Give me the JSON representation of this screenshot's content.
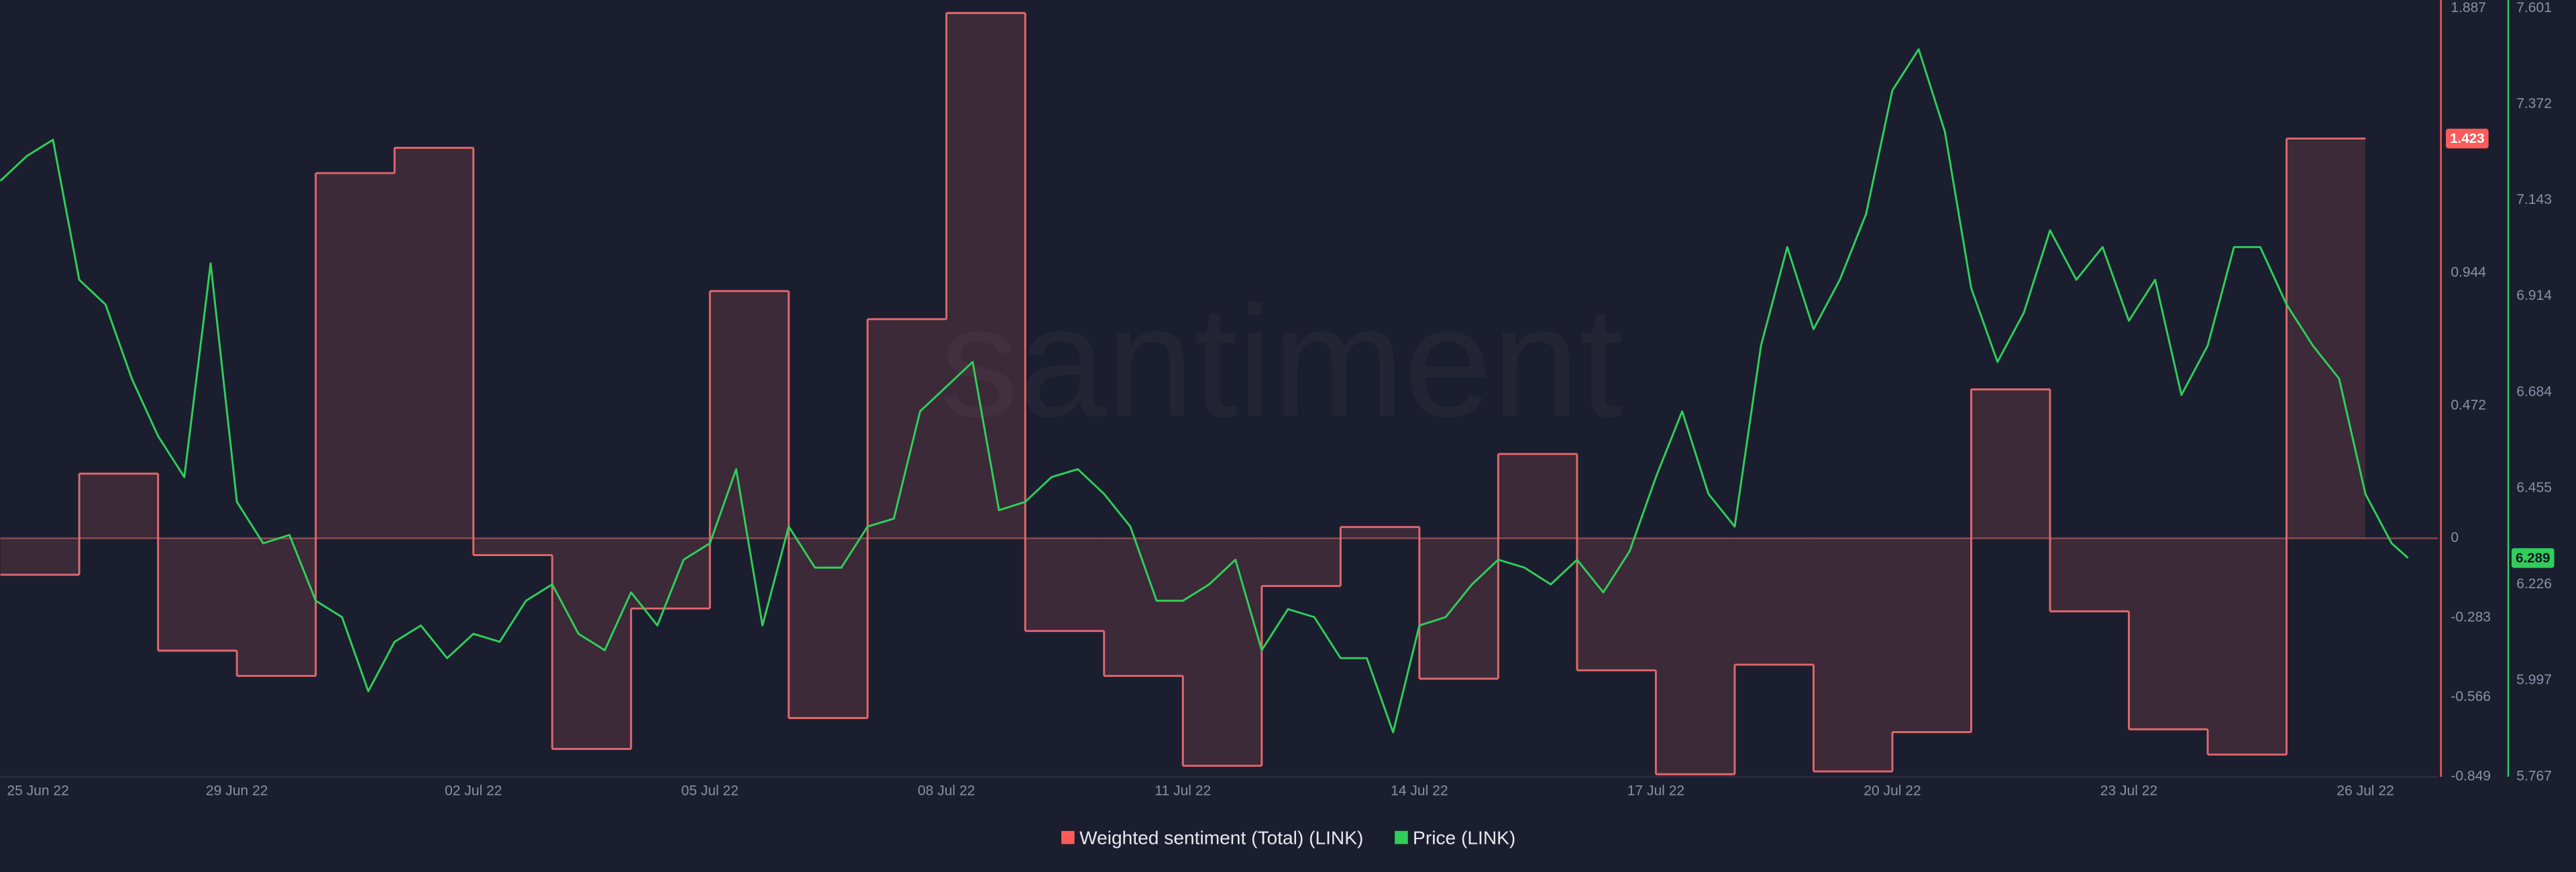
{
  "chart_data": {
    "type": "line",
    "watermark": "santiment",
    "xlim": [
      "2022-06-26T00:00",
      "2022-07-26T22:00"
    ],
    "xticks": [
      {
        "value": "2022-06-25T00:00",
        "label": "25 Jun 22"
      },
      {
        "value": "2022-06-29T00:00",
        "label": "29 Jun 22"
      },
      {
        "value": "2022-07-02T00:00",
        "label": "02 Jul 22"
      },
      {
        "value": "2022-07-05T00:00",
        "label": "05 Jul 22"
      },
      {
        "value": "2022-07-08T00:00",
        "label": "08 Jul 22"
      },
      {
        "value": "2022-07-11T00:00",
        "label": "11 Jul 22"
      },
      {
        "value": "2022-07-14T00:00",
        "label": "14 Jul 22"
      },
      {
        "value": "2022-07-17T00:00",
        "label": "17 Jul 22"
      },
      {
        "value": "2022-07-20T00:00",
        "label": "20 Jul 22"
      },
      {
        "value": "2022-07-23T00:00",
        "label": "23 Jul 22"
      },
      {
        "value": "2022-07-26T00:00",
        "label": "26 Jul 22"
      }
    ],
    "ylim": [
      -0.849,
      1.887
    ],
    "yticks": [
      1.887,
      0.944,
      0.472,
      0,
      -0.283,
      -0.566,
      -0.849
    ],
    "y2lim": [
      5.767,
      7.601
    ],
    "y2ticks": [
      7.601,
      7.372,
      7.143,
      6.914,
      6.684,
      6.455,
      6.226,
      5.997,
      5.767
    ],
    "grid": false,
    "legend": "bottom",
    "series": [
      {
        "name": "Weighted sentiment (Total) (LINK)",
        "type": "step-area",
        "color": "#ff5b5b",
        "axis": "y",
        "x": [
          "2022-06-26T00:00",
          "2022-06-27T00:00",
          "2022-06-28T00:00",
          "2022-06-29T00:00",
          "2022-06-30T00:00",
          "2022-07-01T00:00",
          "2022-07-02T00:00",
          "2022-07-03T00:00",
          "2022-07-04T00:00",
          "2022-07-05T00:00",
          "2022-07-06T00:00",
          "2022-07-07T00:00",
          "2022-07-08T00:00",
          "2022-07-09T00:00",
          "2022-07-10T00:00",
          "2022-07-11T00:00",
          "2022-07-12T00:00",
          "2022-07-13T00:00",
          "2022-07-14T00:00",
          "2022-07-15T00:00",
          "2022-07-16T00:00",
          "2022-07-17T00:00",
          "2022-07-18T00:00",
          "2022-07-19T00:00",
          "2022-07-20T00:00",
          "2022-07-21T00:00",
          "2022-07-22T00:00",
          "2022-07-23T00:00",
          "2022-07-24T00:00",
          "2022-07-25T00:00"
        ],
        "values": [
          -0.13,
          0.23,
          -0.4,
          -0.49,
          1.3,
          1.39,
          -0.06,
          -0.75,
          -0.25,
          0.88,
          -0.64,
          0.78,
          1.87,
          -0.33,
          -0.49,
          -0.81,
          -0.17,
          0.04,
          -0.5,
          0.3,
          -0.47,
          -0.84,
          -0.45,
          -0.83,
          -0.69,
          0.53,
          -0.26,
          -0.68,
          -0.77,
          1.423
        ]
      },
      {
        "name": "Price (LINK)",
        "type": "line",
        "color": "#2fcf5a",
        "axis": "y2",
        "x": [
          "2022-06-26T00:00",
          "2022-06-26T08:00",
          "2022-06-26T16:00",
          "2022-06-27T00:00",
          "2022-06-27T08:00",
          "2022-06-27T16:00",
          "2022-06-28T00:00",
          "2022-06-28T08:00",
          "2022-06-28T16:00",
          "2022-06-29T00:00",
          "2022-06-29T08:00",
          "2022-06-29T16:00",
          "2022-06-30T00:00",
          "2022-06-30T08:00",
          "2022-06-30T16:00",
          "2022-07-01T00:00",
          "2022-07-01T08:00",
          "2022-07-01T16:00",
          "2022-07-02T00:00",
          "2022-07-02T08:00",
          "2022-07-02T16:00",
          "2022-07-03T00:00",
          "2022-07-03T08:00",
          "2022-07-03T16:00",
          "2022-07-04T00:00",
          "2022-07-04T08:00",
          "2022-07-04T16:00",
          "2022-07-05T00:00",
          "2022-07-05T08:00",
          "2022-07-05T16:00",
          "2022-07-06T00:00",
          "2022-07-06T08:00",
          "2022-07-06T16:00",
          "2022-07-07T00:00",
          "2022-07-07T08:00",
          "2022-07-07T16:00",
          "2022-07-08T00:00",
          "2022-07-08T08:00",
          "2022-07-08T16:00",
          "2022-07-09T00:00",
          "2022-07-09T08:00",
          "2022-07-09T16:00",
          "2022-07-10T00:00",
          "2022-07-10T08:00",
          "2022-07-10T16:00",
          "2022-07-11T00:00",
          "2022-07-11T08:00",
          "2022-07-11T16:00",
          "2022-07-12T00:00",
          "2022-07-12T08:00",
          "2022-07-12T16:00",
          "2022-07-13T00:00",
          "2022-07-13T08:00",
          "2022-07-13T16:00",
          "2022-07-14T00:00",
          "2022-07-14T08:00",
          "2022-07-14T16:00",
          "2022-07-15T00:00",
          "2022-07-15T08:00",
          "2022-07-15T16:00",
          "2022-07-16T00:00",
          "2022-07-16T08:00",
          "2022-07-16T16:00",
          "2022-07-17T00:00",
          "2022-07-17T08:00",
          "2022-07-17T16:00",
          "2022-07-18T00:00",
          "2022-07-18T08:00",
          "2022-07-18T16:00",
          "2022-07-19T00:00",
          "2022-07-19T08:00",
          "2022-07-19T16:00",
          "2022-07-20T00:00",
          "2022-07-20T08:00",
          "2022-07-20T16:00",
          "2022-07-21T00:00",
          "2022-07-21T08:00",
          "2022-07-21T16:00",
          "2022-07-22T00:00",
          "2022-07-22T08:00",
          "2022-07-22T16:00",
          "2022-07-23T00:00",
          "2022-07-23T08:00",
          "2022-07-23T16:00",
          "2022-07-24T00:00",
          "2022-07-24T08:00",
          "2022-07-24T16:00",
          "2022-07-25T00:00",
          "2022-07-25T08:00",
          "2022-07-25T16:00",
          "2022-07-26T00:00",
          "2022-07-26T08:00",
          "2022-07-26T13:00"
        ],
        "values": [
          7.189,
          7.248,
          7.287,
          6.953,
          6.894,
          6.717,
          6.58,
          6.482,
          6.992,
          6.423,
          6.324,
          6.344,
          6.187,
          6.148,
          5.971,
          6.089,
          6.128,
          6.05,
          6.108,
          6.089,
          6.187,
          6.226,
          6.108,
          6.069,
          6.207,
          6.128,
          6.285,
          6.324,
          6.501,
          6.128,
          6.364,
          6.266,
          6.266,
          6.364,
          6.383,
          6.639,
          6.698,
          6.757,
          6.403,
          6.423,
          6.482,
          6.501,
          6.442,
          6.364,
          6.187,
          6.187,
          6.226,
          6.285,
          6.069,
          6.167,
          6.148,
          6.05,
          6.05,
          5.873,
          6.128,
          6.148,
          6.226,
          6.285,
          6.266,
          6.226,
          6.285,
          6.207,
          6.305,
          6.482,
          6.639,
          6.442,
          6.364,
          6.796,
          7.031,
          6.835,
          6.953,
          7.11,
          7.405,
          7.503,
          7.306,
          6.933,
          6.757,
          6.874,
          7.071,
          6.953,
          7.031,
          6.855,
          6.953,
          6.678,
          6.796,
          7.031,
          7.031,
          6.894,
          6.796,
          6.717,
          6.442,
          6.324,
          6.289
        ]
      }
    ]
  }
}
